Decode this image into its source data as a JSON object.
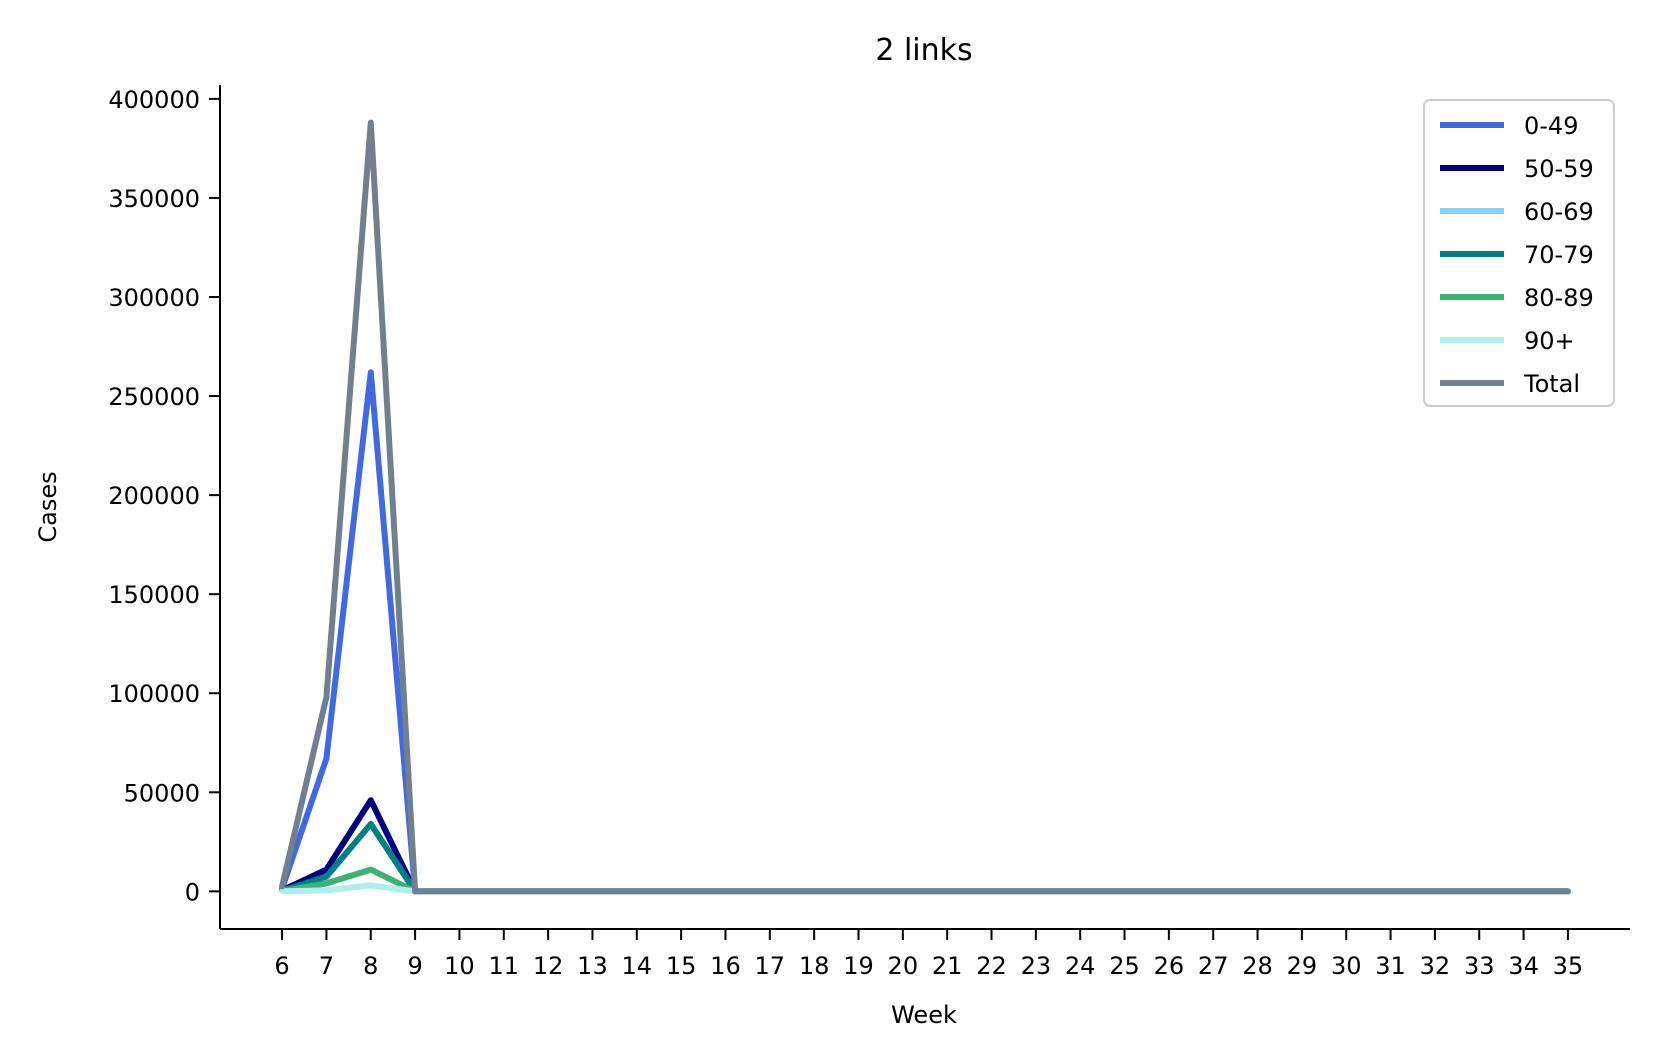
{
  "chart_data": {
    "type": "line",
    "title": "2 links",
    "xlabel": "Week",
    "ylabel": "Cases",
    "x": [
      6,
      7,
      8,
      9,
      10,
      11,
      12,
      13,
      14,
      15,
      16,
      17,
      18,
      19,
      20,
      21,
      22,
      23,
      24,
      25,
      26,
      27,
      28,
      29,
      30,
      31,
      32,
      33,
      34,
      35
    ],
    "yticks": [
      0,
      50000,
      100000,
      150000,
      200000,
      250000,
      300000,
      350000,
      400000
    ],
    "ylim": [
      -19000,
      407000
    ],
    "xlim": [
      4.6,
      36.4
    ],
    "grid": false,
    "legend_position": "top-right",
    "series": [
      {
        "name": "0-49",
        "color": "#4169E1",
        "values": [
          1500,
          67000,
          262000,
          0,
          0,
          0,
          0,
          0,
          0,
          0,
          0,
          0,
          0,
          0,
          0,
          0,
          0,
          0,
          0,
          0,
          0,
          0,
          0,
          0,
          0,
          0,
          0,
          0,
          0,
          0
        ]
      },
      {
        "name": "50-59",
        "color": "#000080",
        "values": [
          500,
          11000,
          46000,
          0,
          0,
          0,
          0,
          0,
          0,
          0,
          0,
          0,
          0,
          0,
          0,
          0,
          0,
          0,
          0,
          0,
          0,
          0,
          0,
          0,
          0,
          0,
          0,
          0,
          0,
          0
        ]
      },
      {
        "name": "60-69",
        "color": "#87CEFA",
        "values": [
          300,
          7000,
          34000,
          0,
          0,
          0,
          0,
          0,
          0,
          0,
          0,
          0,
          0,
          0,
          0,
          0,
          0,
          0,
          0,
          0,
          0,
          0,
          0,
          0,
          0,
          0,
          0,
          0,
          0,
          0
        ]
      },
      {
        "name": "70-79",
        "color": "#008080",
        "values": [
          300,
          7500,
          34000,
          0,
          0,
          0,
          0,
          0,
          0,
          0,
          0,
          0,
          0,
          0,
          0,
          0,
          0,
          0,
          0,
          0,
          0,
          0,
          0,
          0,
          0,
          0,
          0,
          0,
          0,
          0
        ]
      },
      {
        "name": "80-89",
        "color": "#3CB371",
        "values": [
          200,
          4000,
          11000,
          0,
          0,
          0,
          0,
          0,
          0,
          0,
          0,
          0,
          0,
          0,
          0,
          0,
          0,
          0,
          0,
          0,
          0,
          0,
          0,
          0,
          0,
          0,
          0,
          0,
          0,
          0
        ]
      },
      {
        "name": "90+",
        "color": "#AFEEEE",
        "values": [
          100,
          500,
          3000,
          0,
          0,
          0,
          0,
          0,
          0,
          0,
          0,
          0,
          0,
          0,
          0,
          0,
          0,
          0,
          0,
          0,
          0,
          0,
          0,
          0,
          0,
          0,
          0,
          0,
          0,
          0
        ]
      },
      {
        "name": "Total",
        "color": "#708090",
        "values": [
          2500,
          98000,
          388000,
          0,
          0,
          0,
          0,
          0,
          0,
          0,
          0,
          0,
          0,
          0,
          0,
          0,
          0,
          0,
          0,
          0,
          0,
          0,
          0,
          0,
          0,
          0,
          0,
          0,
          0,
          0
        ]
      }
    ]
  }
}
